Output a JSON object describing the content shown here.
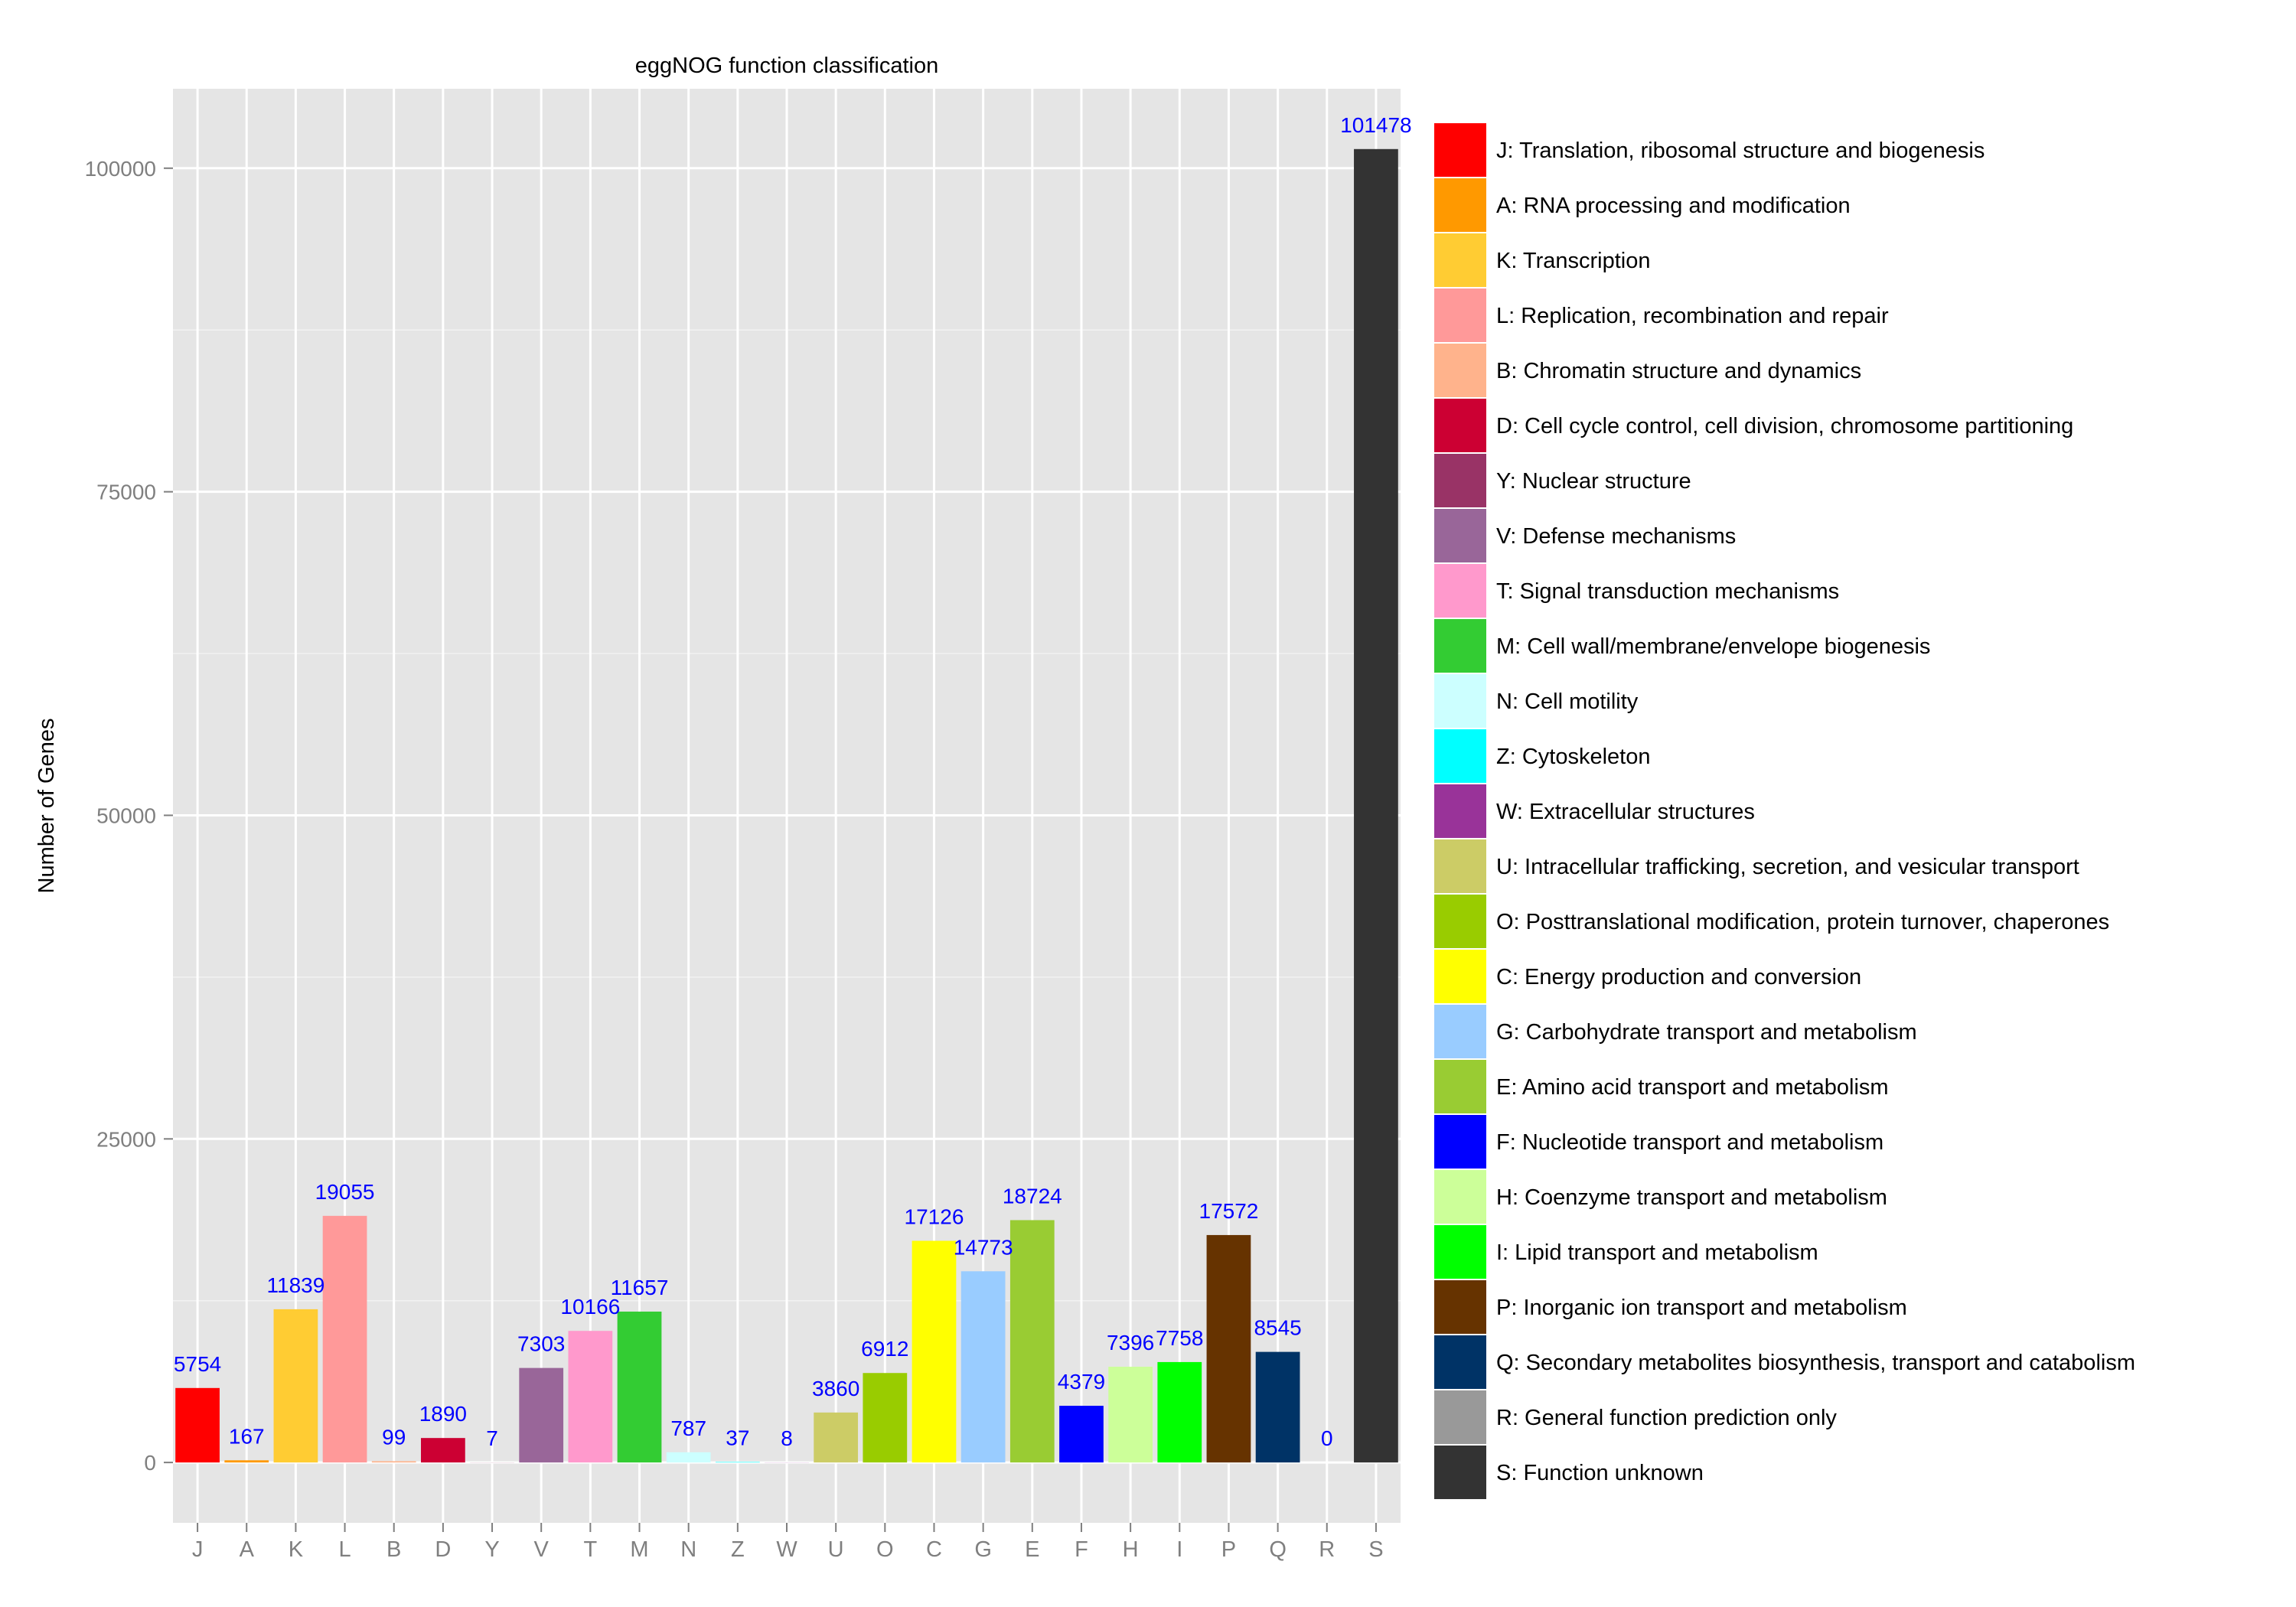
{
  "chart_data": {
    "type": "bar",
    "title": "eggNOG function classification",
    "xlabel": "",
    "ylabel": "Number of Genes",
    "ylim": [
      -4663,
      106137
    ],
    "yticks": [
      0,
      25000,
      50000,
      75000,
      100000
    ],
    "ytick_labels": [
      "0",
      "25000",
      "50000",
      "75000",
      "100000"
    ],
    "grid": true,
    "legend_position": "right",
    "label_color": "#0000ff",
    "categories": [
      "J",
      "A",
      "K",
      "L",
      "B",
      "D",
      "Y",
      "V",
      "T",
      "M",
      "N",
      "Z",
      "W",
      "U",
      "O",
      "C",
      "G",
      "E",
      "F",
      "H",
      "I",
      "P",
      "Q",
      "R",
      "S"
    ],
    "values": [
      5754,
      167,
      11839,
      19055,
      99,
      1890,
      7,
      7303,
      10166,
      11657,
      787,
      37,
      8,
      3860,
      6912,
      17126,
      14773,
      18724,
      4379,
      7396,
      7758,
      17572,
      8545,
      0,
      101478
    ],
    "value_labels": [
      "5754",
      "167",
      "11839",
      "19055",
      "99",
      "1890",
      "7",
      "7303",
      "10166",
      "11657",
      "787",
      "37",
      "8",
      "3860",
      "6912",
      "17126",
      "14773",
      "18724",
      "4379",
      "7396",
      "7758",
      "17572",
      "8545",
      "0",
      "101478"
    ],
    "colors": [
      "#ff0000",
      "#ff9900",
      "#ffcc33",
      "#ff9999",
      "#ffb38c",
      "#cc0033",
      "#993366",
      "#996699",
      "#ff99cc",
      "#33cc33",
      "#ccffff",
      "#00ffff",
      "#993399",
      "#cccc66",
      "#99cc00",
      "#ffff00",
      "#99ccff",
      "#99cc33",
      "#0000ff",
      "#ccff99",
      "#00ff00",
      "#663300",
      "#003366",
      "#999999",
      "#333333"
    ],
    "legend": [
      "J: Translation, ribosomal structure and biogenesis",
      "A: RNA processing and modification",
      "K: Transcription",
      "L: Replication, recombination and repair",
      "B: Chromatin structure and dynamics",
      "D: Cell cycle control, cell division, chromosome partitioning",
      "Y: Nuclear structure",
      "V: Defense mechanisms",
      "T: Signal transduction mechanisms",
      "M: Cell wall/membrane/envelope biogenesis",
      "N: Cell motility",
      "Z: Cytoskeleton",
      "W: Extracellular structures",
      "U: Intracellular trafficking, secretion, and vesicular transport",
      "O: Posttranslational modification, protein turnover, chaperones",
      "C: Energy production and conversion",
      "G: Carbohydrate transport and metabolism",
      "E: Amino acid transport and metabolism",
      "F: Nucleotide transport and metabolism",
      "H: Coenzyme transport and metabolism",
      "I: Lipid transport and metabolism",
      "P: Inorganic ion transport and metabolism",
      "Q: Secondary metabolites biosynthesis, transport and catabolism",
      "R: General function prediction only",
      "S: Function unknown"
    ]
  }
}
